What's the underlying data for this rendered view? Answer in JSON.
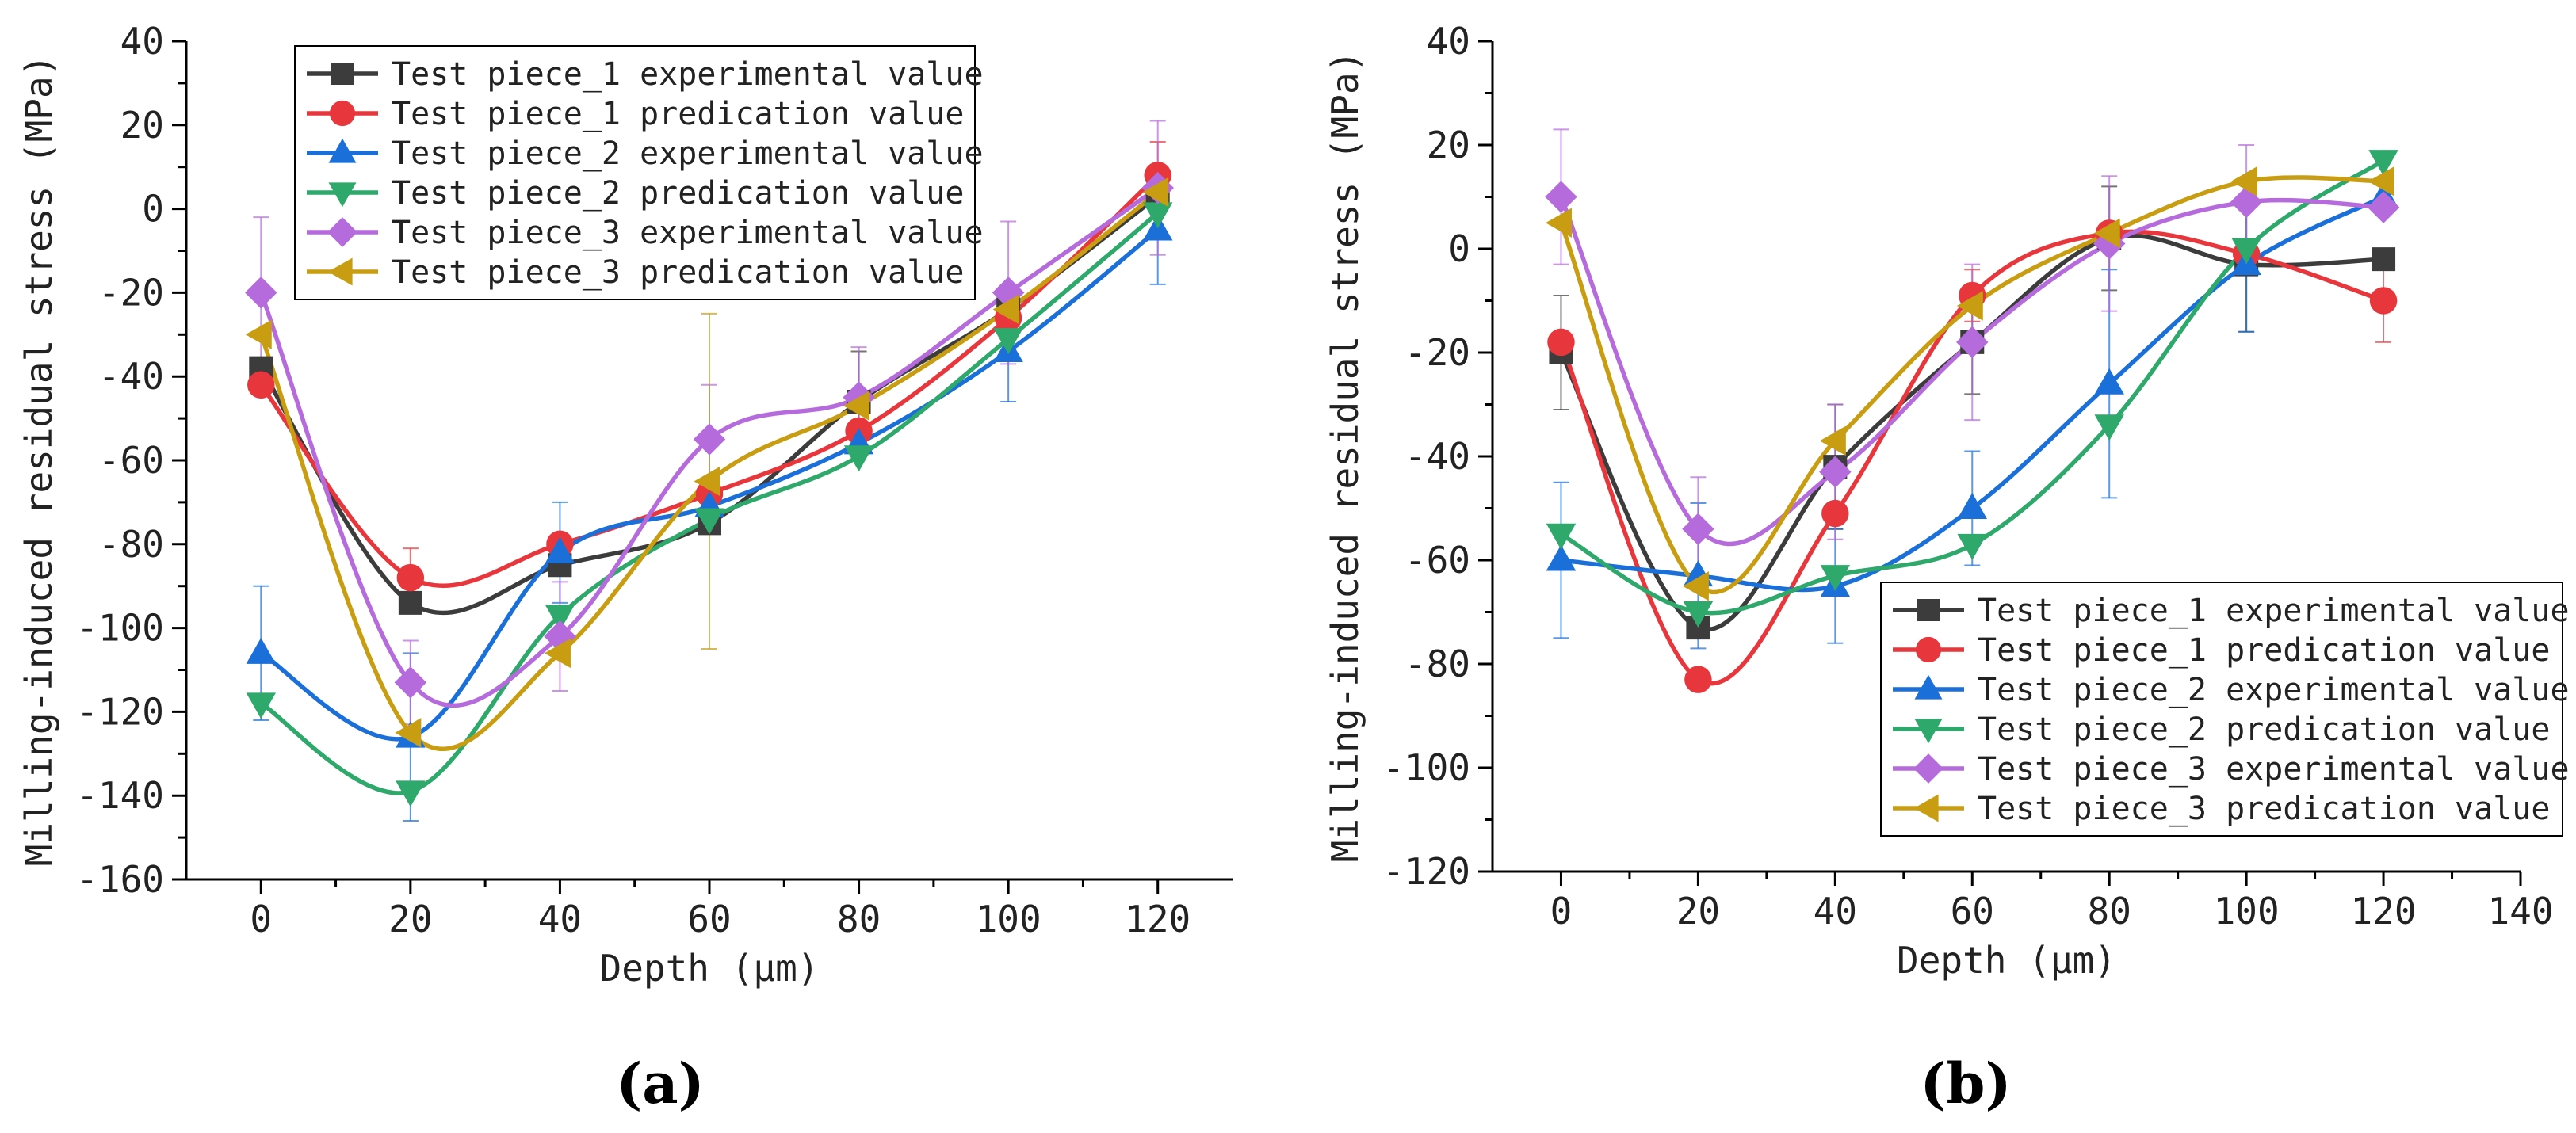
{
  "figure": {
    "panel_labels": [
      "(a)",
      "(b)"
    ]
  },
  "chart_data": [
    {
      "panel": "(a)",
      "type": "line",
      "title": "",
      "xlabel": "Depth (μm)",
      "ylabel": "Milling-induced residual stress (MPa)",
      "xlim": [
        -10,
        130
      ],
      "ylim": [
        -160,
        40
      ],
      "xticks": [
        0,
        20,
        40,
        60,
        80,
        100,
        120
      ],
      "yticks": [
        -160,
        -140,
        -120,
        -100,
        -80,
        -60,
        -40,
        -20,
        0,
        20,
        40
      ],
      "legend_position": "top-left",
      "series": [
        {
          "name": "Test piece_1 experimental value",
          "color": "#3c3c3c",
          "marker": "square",
          "x": [
            0,
            20,
            40,
            60,
            80,
            100,
            120
          ],
          "y": [
            -38,
            -94,
            -85,
            -75,
            -46,
            -24,
            3
          ],
          "err": [
            0,
            0,
            0,
            0,
            12,
            0,
            0
          ]
        },
        {
          "name": "Test piece_1 predication value",
          "color": "#e8373c",
          "marker": "circle",
          "x": [
            0,
            20,
            40,
            60,
            80,
            100,
            120
          ],
          "y": [
            -42,
            -88,
            -80,
            -68,
            -53,
            -26,
            8
          ],
          "err": [
            0,
            7,
            0,
            0,
            0,
            0,
            8
          ]
        },
        {
          "name": "Test piece_2 experimental value",
          "color": "#1a6fd8",
          "marker": "triangle-up",
          "x": [
            0,
            20,
            40,
            60,
            80,
            100,
            120
          ],
          "y": [
            -106,
            -126,
            -82,
            -71,
            -56,
            -34,
            -5
          ],
          "err": [
            16,
            20,
            12,
            0,
            0,
            12,
            13
          ]
        },
        {
          "name": "Test piece_2 predication value",
          "color": "#2ea86b",
          "marker": "triangle-down",
          "x": [
            0,
            20,
            40,
            60,
            80,
            100,
            120
          ],
          "y": [
            -118,
            -139,
            -97,
            -74,
            -59,
            -31,
            -1
          ],
          "err": [
            0,
            0,
            0,
            0,
            0,
            0,
            0
          ]
        },
        {
          "name": "Test piece_3 experimental value",
          "color": "#b66bdc",
          "marker": "diamond",
          "x": [
            0,
            20,
            40,
            60,
            80,
            100,
            120
          ],
          "y": [
            -20,
            -113,
            -102,
            -55,
            -45,
            -20,
            5
          ],
          "err": [
            18,
            10,
            13,
            13,
            12,
            17,
            16
          ]
        },
        {
          "name": "Test piece_3 predication value",
          "color": "#c89d12",
          "marker": "triangle-left",
          "x": [
            0,
            20,
            40,
            60,
            80,
            100,
            120
          ],
          "y": [
            -30,
            -125,
            -106,
            -65,
            -47,
            -24,
            4
          ],
          "err": [
            0,
            0,
            0,
            40,
            0,
            0,
            0
          ]
        }
      ]
    },
    {
      "panel": "(b)",
      "type": "line",
      "title": "",
      "xlabel": "Depth (μm)",
      "ylabel": "Milling-induced residual stress (MPa)",
      "xlim": [
        -10,
        140
      ],
      "ylim": [
        -120,
        40
      ],
      "xticks": [
        0,
        20,
        40,
        60,
        80,
        100,
        120,
        140
      ],
      "yticks": [
        -120,
        -100,
        -80,
        -60,
        -40,
        -20,
        0,
        20,
        40
      ],
      "legend_position": "bottom-right",
      "series": [
        {
          "name": "Test piece_1 experimental value",
          "color": "#3c3c3c",
          "marker": "square",
          "x": [
            0,
            20,
            40,
            60,
            80,
            100,
            120
          ],
          "y": [
            -20,
            -73,
            -42,
            -18,
            2,
            -3,
            -2
          ],
          "err": [
            11,
            0,
            12,
            10,
            10,
            13,
            0
          ]
        },
        {
          "name": "Test piece_1 predication value",
          "color": "#e8373c",
          "marker": "circle",
          "x": [
            0,
            20,
            40,
            60,
            80,
            100,
            120
          ],
          "y": [
            -18,
            -83,
            -51,
            -9,
            3,
            -1,
            -10
          ],
          "err": [
            0,
            0,
            0,
            5,
            0,
            0,
            8
          ]
        },
        {
          "name": "Test piece_2 experimental value",
          "color": "#1a6fd8",
          "marker": "triangle-up",
          "x": [
            0,
            20,
            40,
            60,
            80,
            100,
            120
          ],
          "y": [
            -60,
            -63,
            -65,
            -50,
            -26,
            -3,
            10
          ],
          "err": [
            15,
            14,
            11,
            11,
            22,
            13,
            0
          ]
        },
        {
          "name": "Test piece_2 predication value",
          "color": "#2ea86b",
          "marker": "triangle-down",
          "x": [
            0,
            20,
            40,
            60,
            80,
            100,
            120
          ],
          "y": [
            -55,
            -70,
            -63,
            -57,
            -34,
            0,
            17
          ],
          "err": [
            0,
            0,
            0,
            0,
            0,
            0,
            0
          ]
        },
        {
          "name": "Test piece_3 experimental value",
          "color": "#b66bdc",
          "marker": "diamond",
          "x": [
            0,
            20,
            40,
            60,
            80,
            100,
            120
          ],
          "y": [
            10,
            -54,
            -43,
            -18,
            1,
            9,
            8
          ],
          "err": [
            13,
            10,
            13,
            15,
            13,
            11,
            0
          ]
        },
        {
          "name": "Test piece_3 predication value",
          "color": "#c89d12",
          "marker": "triangle-left",
          "x": [
            0,
            20,
            40,
            60,
            80,
            100,
            120
          ],
          "y": [
            5,
            -65,
            -37,
            -11,
            3,
            13,
            13
          ],
          "err": [
            0,
            0,
            0,
            0,
            0,
            0,
            0
          ]
        }
      ]
    }
  ]
}
